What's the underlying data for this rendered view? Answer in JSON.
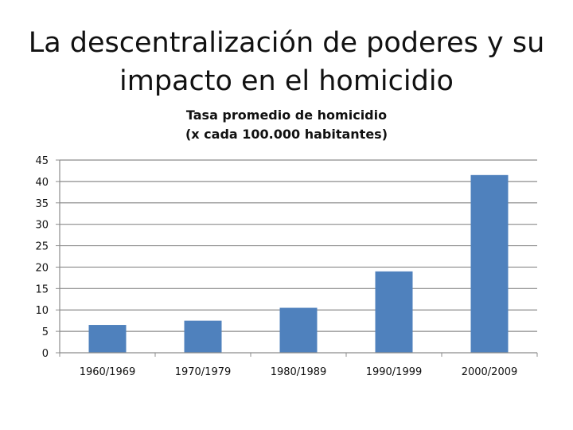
{
  "slide": {
    "title_line1": "La descentralización de poderes y su",
    "title_line2": "impacto en el homicidio"
  },
  "chart_data": {
    "type": "bar",
    "title_line1": "Tasa promedio de homicidio",
    "title_line2": "(x cada 100.000 habitantes)",
    "categories": [
      "1960/1969",
      "1970/1979",
      "1980/1989",
      "1990/1999",
      "2000/2009"
    ],
    "values": [
      6.5,
      7.5,
      10.5,
      19,
      41.5
    ],
    "ylim": [
      0,
      45
    ],
    "yticks": [
      0,
      5,
      10,
      15,
      20,
      25,
      30,
      35,
      40,
      45
    ],
    "grid": true,
    "legend": "none",
    "bar_color": "#4f81bd",
    "grid_color": "#8c8c8c"
  }
}
